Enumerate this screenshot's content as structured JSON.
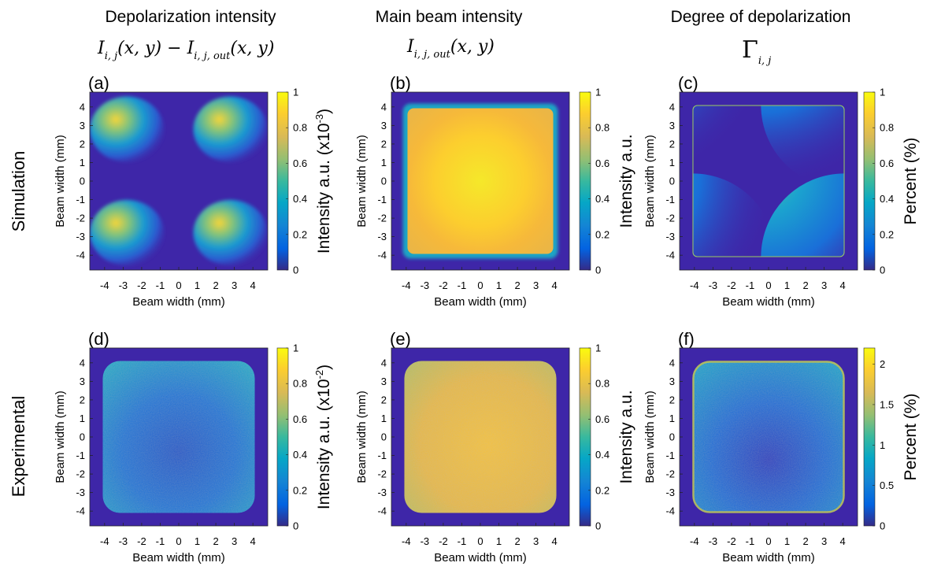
{
  "columns": [
    {
      "title": "Depolarization intensity",
      "formula_parts": [
        "I",
        "i, j",
        "(x, y) − I",
        "i, j, out",
        "(x, y)"
      ]
    },
    {
      "title": "Main beam intensity",
      "formula_parts": [
        "I",
        "i, j, out",
        "(x, y)"
      ]
    },
    {
      "title": "Degree of depolarization",
      "formula_parts": [
        "Γ",
        "i, j"
      ]
    }
  ],
  "rows": [
    "Simulation",
    "Experimental"
  ],
  "colors": {
    "background": "#3e26a8",
    "low": "#352a87",
    "mid": "#27b2a0",
    "high": "#f9fb0e"
  },
  "chart_data": [
    {
      "type": "heatmap",
      "panel": "(a)",
      "pattern": "sim-corners",
      "xlabel": "Beam width (mm)",
      "ylabel": "Beam width (mm)",
      "xlim": [
        -4.8,
        4.8
      ],
      "ylim": [
        -4.8,
        4.8
      ],
      "xticks": [
        -4,
        -3,
        -2,
        -1,
        0,
        1,
        2,
        3,
        4
      ],
      "yticks": [
        -4,
        -3,
        -2,
        -1,
        0,
        1,
        2,
        3,
        4
      ],
      "colorbar": {
        "label": "Intensity a.u. (x10",
        "label_exp": "-3",
        "label_close": ")",
        "range": [
          0,
          1
        ],
        "ticks": [
          "0",
          "0.2",
          "0.4",
          "0.6",
          "0.8",
          "1"
        ]
      }
    },
    {
      "type": "heatmap",
      "panel": "(b)",
      "pattern": "sim-square",
      "xlabel": "Beam width (mm)",
      "ylabel": "Beam width (mm)",
      "xlim": [
        -4.8,
        4.8
      ],
      "ylim": [
        -4.8,
        4.8
      ],
      "xticks": [
        -4,
        -3,
        -2,
        -1,
        0,
        1,
        2,
        3,
        4
      ],
      "yticks": [
        -4,
        -3,
        -2,
        -1,
        0,
        1,
        2,
        3,
        4
      ],
      "colorbar": {
        "label": "Intensity a.u.",
        "label_exp": "",
        "label_close": "",
        "range": [
          0,
          1
        ],
        "ticks": [
          "0",
          "0.2",
          "0.4",
          "0.6",
          "0.8",
          "1"
        ]
      }
    },
    {
      "type": "heatmap",
      "panel": "(c)",
      "pattern": "sim-degree",
      "xlabel": "Beam width (mm)",
      "ylabel": "Beam width (mm)",
      "xlim": [
        -4.8,
        4.8
      ],
      "ylim": [
        -4.8,
        4.8
      ],
      "xticks": [
        -4,
        -3,
        -2,
        -1,
        0,
        1,
        2,
        3,
        4
      ],
      "yticks": [
        -4,
        -3,
        -2,
        -1,
        0,
        1,
        2,
        3,
        4
      ],
      "colorbar": {
        "label": "Percent (%)",
        "label_exp": "",
        "label_close": "",
        "range": [
          0,
          1
        ],
        "ticks": [
          "0",
          "0.2",
          "0.4",
          "0.6",
          "0.8",
          "1"
        ]
      }
    },
    {
      "type": "heatmap",
      "panel": "(d)",
      "pattern": "exp-depol",
      "xlabel": "Beam width (mm)",
      "ylabel": "Beam width (mm)",
      "xlim": [
        -4.8,
        4.8
      ],
      "ylim": [
        -4.8,
        4.8
      ],
      "xticks": [
        -4,
        -3,
        -2,
        -1,
        0,
        1,
        2,
        3,
        4
      ],
      "yticks": [
        -4,
        -3,
        -2,
        -1,
        0,
        1,
        2,
        3,
        4
      ],
      "colorbar": {
        "label": "Intensity a.u. (x10",
        "label_exp": "-2",
        "label_close": ")",
        "range": [
          0,
          1
        ],
        "ticks": [
          "0",
          "0.2",
          "0.4",
          "0.6",
          "0.8",
          "1"
        ]
      }
    },
    {
      "type": "heatmap",
      "panel": "(e)",
      "pattern": "exp-main",
      "xlabel": "Beam width (mm)",
      "ylabel": "Beam width (mm)",
      "xlim": [
        -4.8,
        4.8
      ],
      "ylim": [
        -4.8,
        4.8
      ],
      "xticks": [
        -4,
        -3,
        -2,
        -1,
        0,
        1,
        2,
        3,
        4
      ],
      "yticks": [
        -4,
        -3,
        -2,
        -1,
        0,
        1,
        2,
        3,
        4
      ],
      "colorbar": {
        "label": "Intensity a.u.",
        "label_exp": "",
        "label_close": "",
        "range": [
          0,
          1
        ],
        "ticks": [
          "0",
          "0.2",
          "0.4",
          "0.6",
          "0.8",
          "1"
        ]
      }
    },
    {
      "type": "heatmap",
      "panel": "(f)",
      "pattern": "exp-degree",
      "xlabel": "Beam width (mm)",
      "ylabel": "Beam width (mm)",
      "xlim": [
        -4.8,
        4.8
      ],
      "ylim": [
        -4.8,
        4.8
      ],
      "xticks": [
        -4,
        -3,
        -2,
        -1,
        0,
        1,
        2,
        3,
        4
      ],
      "yticks": [
        -4,
        -3,
        -2,
        -1,
        0,
        1,
        2,
        3,
        4
      ],
      "colorbar": {
        "label": "Percent (%)",
        "label_exp": "",
        "label_close": "",
        "range": [
          0,
          2.2
        ],
        "ticks": [
          "0",
          "0.5",
          "1",
          "1.5",
          "2"
        ]
      }
    }
  ]
}
